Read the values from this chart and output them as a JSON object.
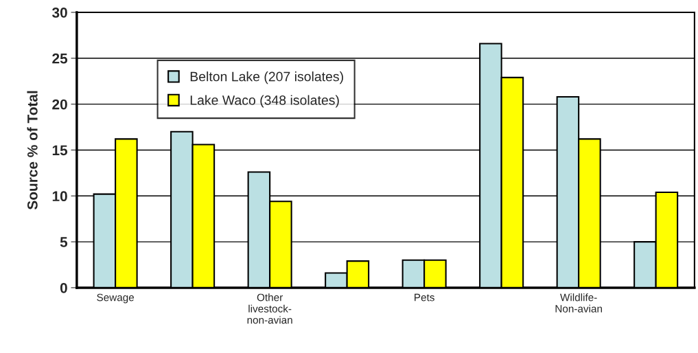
{
  "chart_data": {
    "type": "bar",
    "ylabel": "Source % of Total",
    "categories": [
      "Sewage",
      null,
      "Other\nlivestock-\nnon-avian",
      null,
      "Pets",
      null,
      "Wildlife-\nNon-avian",
      null
    ],
    "series": [
      {
        "name": "Belton Lake (207 isolates)",
        "color": "#bbe0e3",
        "values": [
          10.2,
          17.0,
          12.6,
          1.6,
          3.0,
          26.6,
          20.8,
          5.0
        ]
      },
      {
        "name": "Lake Waco (348 isolates)",
        "color": "#ffff00",
        "values": [
          16.2,
          15.6,
          9.4,
          2.9,
          3.0,
          22.9,
          16.2,
          10.4
        ]
      }
    ],
    "ylim": [
      0,
      30
    ],
    "yticks": [
      0,
      5,
      10,
      15,
      20,
      25,
      30
    ],
    "grid": "y",
    "legend": "top left"
  }
}
